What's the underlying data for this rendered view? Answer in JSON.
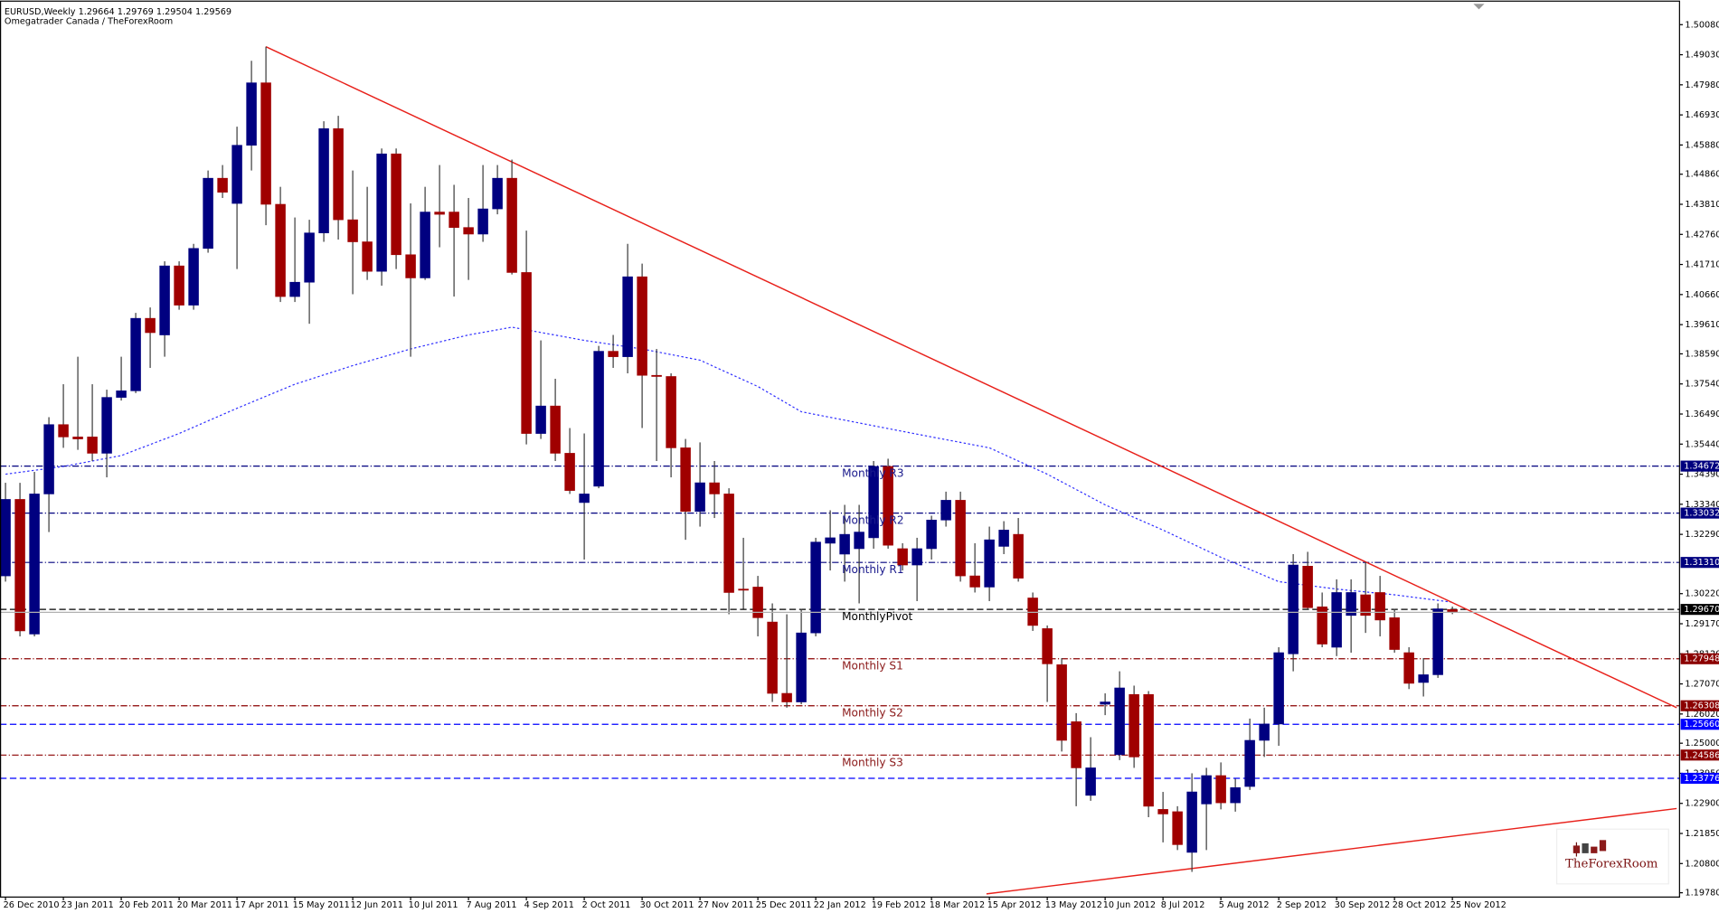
{
  "chart_data": {
    "type": "candlestick",
    "symbol_info": "EURUSD,Weekly  1.29664 1.29769 1.29504 1.29569",
    "broker": "Omegatrader Canada / TheForexRoom",
    "logo": "TheForexRoom",
    "up_color": "#000080",
    "down_color": "#a00000",
    "wick_color": "#3a3a3a",
    "grid": false,
    "categories": [
      "26 Dec 2010",
      null,
      null,
      null,
      "23 Jan 2011",
      null,
      null,
      null,
      "20 Feb 2011",
      null,
      null,
      null,
      "20 Mar 2011",
      null,
      null,
      null,
      "17 Apr 2011",
      null,
      null,
      null,
      "15 May 2011",
      null,
      null,
      null,
      "12 Jun 2011",
      null,
      null,
      null,
      "10 Jul 2011",
      null,
      null,
      null,
      "7 Aug 2011",
      null,
      null,
      null,
      "4 Sep 2011",
      null,
      null,
      null,
      "2 Oct 2011",
      null,
      null,
      null,
      "30 Oct 2011",
      null,
      null,
      null,
      "27 Nov 2011",
      null,
      null,
      null,
      "25 Dec 2011",
      null,
      null,
      null,
      "22 Jan 2012",
      null,
      null,
      null,
      "19 Feb 2012",
      null,
      null,
      null,
      "18 Mar 2012",
      null,
      null,
      null,
      "15 Apr 2012",
      null,
      null,
      null,
      "13 May 2012",
      null,
      null,
      null,
      "10 Jun 2012",
      null,
      null,
      null,
      "8 Jul 2012",
      null,
      null,
      null,
      "5 Aug 2012",
      null,
      null,
      null,
      "2 Sep 2012",
      null,
      null,
      null,
      "30 Sep 2012",
      null,
      null,
      null,
      "28 Oct 2012",
      null,
      null,
      null,
      "25 Nov 2012"
    ],
    "open": [
      1.3084,
      1.3351,
      1.2881,
      1.337,
      1.3612,
      1.3569,
      1.3569,
      1.3512,
      1.3707,
      1.373,
      1.3983,
      1.3925,
      1.4166,
      1.4029,
      1.4227,
      1.4472,
      1.4384,
      1.4587,
      1.4805,
      1.4381,
      1.4059,
      1.4109,
      1.4281,
      1.4645,
      1.4327,
      1.425,
      1.4147,
      1.4557,
      1.4205,
      1.4124,
      1.4354,
      1.4354,
      1.43,
      1.4277,
      1.4365,
      1.4472,
      1.4143,
      1.3581,
      1.3677,
      1.3512,
      1.334,
      1.3397,
      1.3868,
      1.3849,
      1.4128,
      1.3784,
      1.378,
      1.3531,
      1.3309,
      1.3409,
      1.337,
      1.3038,
      1.3045,
      1.2923,
      1.2674,
      1.2644,
      1.2885,
      1.3198,
      1.316,
      1.3179,
      1.3217,
      1.3466,
      1.3179,
      1.3122,
      1.3179,
      1.3279,
      1.3348,
      1.3084,
      1.3045,
      1.3187,
      1.3229,
      1.3007,
      1.29,
      1.2774,
      1.2575,
      1.2318,
      1.2636,
      1.246,
      1.267,
      1.267,
      1.2269,
      1.2261,
      1.2119,
      1.2288,
      1.2387,
      1.2292,
      1.2349,
      1.251,
      1.2567,
      1.2812,
      1.3118,
      1.2976,
      1.2835,
      1.2946,
      1.3018,
      1.3026,
      1.2938,
      1.2816,
      1.2712,
      1.2739,
      1.29664
    ],
    "high": [
      1.3409,
      1.3409,
      1.3447,
      1.3638,
      1.3753,
      1.3849,
      1.3753,
      1.3734,
      1.3849,
      1.4002,
      1.4021,
      1.4182,
      1.4182,
      1.4243,
      1.4499,
      1.4518,
      1.4652,
      1.4882,
      1.4931,
      1.4442,
      1.4335,
      1.4327,
      1.4671,
      1.469,
      1.4499,
      1.4442,
      1.4576,
      1.4576,
      1.4384,
      1.4442,
      1.4518,
      1.4449,
      1.4403,
      1.4518,
      1.4518,
      1.4537,
      1.4289,
      1.3906,
      1.3772,
      1.36,
      1.3581,
      1.3887,
      1.3925,
      1.4243,
      1.4174,
      1.3876,
      1.3791,
      1.3562,
      1.355,
      1.3485,
      1.339,
      1.3217,
      1.3084,
      1.2988,
      1.295,
      1.2969,
      1.3217,
      1.3313,
      1.3332,
      1.3332,
      1.3485,
      1.3493,
      1.3198,
      1.3217,
      1.3294,
      1.3378,
      1.3378,
      1.3198,
      1.3256,
      1.3275,
      1.3286,
      1.3026,
      1.2911,
      1.2797,
      1.2605,
      1.2521,
      1.2674,
      1.2751,
      1.2701,
      1.2682,
      1.233,
      1.228,
      1.2395,
      1.2414,
      1.2433,
      1.2376,
      1.2586,
      1.2624,
      1.2835,
      1.316,
      1.3168,
      1.3026,
      1.3072,
      1.3072,
      1.3133,
      1.3084,
      1.2969,
      1.2835,
      1.2797,
      1.2988,
      1.29769
    ],
    "low": [
      1.3064,
      1.2873,
      1.2873,
      1.3237,
      1.3531,
      1.3524,
      1.3485,
      1.3428,
      1.3696,
      1.3722,
      1.381,
      1.3849,
      1.4013,
      1.4013,
      1.4212,
      1.4403,
      1.4155,
      1.4499,
      1.4308,
      1.404,
      1.404,
      1.3964,
      1.425,
      1.4258,
      1.4067,
      1.4117,
      1.4097,
      1.4155,
      1.3849,
      1.4117,
      1.4231,
      1.4059,
      1.4117,
      1.425,
      1.4346,
      1.4136,
      1.3543,
      1.3562,
      1.3485,
      1.337,
      1.3141,
      1.339,
      1.381,
      1.3791,
      1.36,
      1.3485,
      1.3428,
      1.321,
      1.3256,
      1.3286,
      1.295,
      1.2969,
      1.2873,
      1.2644,
      1.2624,
      1.2636,
      1.2873,
      1.3103,
      1.3064,
      1.2988,
      1.3179,
      1.3179,
      1.3103,
      1.2996,
      1.3141,
      1.3256,
      1.3064,
      1.3026,
      1.2996,
      1.316,
      1.3064,
      1.2892,
      1.2644,
      1.2471,
      1.228,
      1.2299,
      1.2598,
      1.2441,
      1.2414,
      1.2242,
      1.2154,
      1.2127,
      1.2051,
      1.2127,
      1.2269,
      1.2261,
      1.2337,
      1.2452,
      1.2491,
      1.2751,
      1.2965,
      1.2835,
      1.2804,
      1.2816,
      1.2885,
      1.2873,
      1.2816,
      1.2689,
      1.2663,
      1.2728,
      1.29504
    ],
    "close": [
      1.3351,
      1.2892,
      1.337,
      1.3612,
      1.3569,
      1.3562,
      1.3512,
      1.3707,
      1.373,
      1.3983,
      1.3933,
      1.4166,
      1.4029,
      1.4227,
      1.4472,
      1.4423,
      1.4587,
      1.4805,
      1.4381,
      1.4059,
      1.4109,
      1.4281,
      1.4645,
      1.4327,
      1.425,
      1.4147,
      1.4557,
      1.4205,
      1.4124,
      1.4354,
      1.4346,
      1.43,
      1.4277,
      1.4365,
      1.4472,
      1.4143,
      1.3581,
      1.3677,
      1.3512,
      1.3382,
      1.337,
      1.3868,
      1.3849,
      1.4128,
      1.3784,
      1.378,
      1.3531,
      1.3309,
      1.3409,
      1.337,
      1.3026,
      1.3034,
      1.2938,
      1.2674,
      1.2644,
      1.2885,
      1.3202,
      1.3217,
      1.3229,
      1.3237,
      1.3466,
      1.3191,
      1.3122,
      1.3179,
      1.3279,
      1.3348,
      1.3084,
      1.3045,
      1.321,
      1.3244,
      1.3076,
      1.2911,
      1.2777,
      1.251,
      1.2414,
      1.2414,
      1.2644,
      1.2693,
      1.2452,
      1.228,
      1.2253,
      1.2146,
      1.233,
      1.2387,
      1.2292,
      1.2345,
      1.251,
      1.2567,
      1.2816,
      1.3122,
      1.2973,
      1.2846,
      1.3026,
      1.3026,
      1.2946,
      1.293,
      1.2827,
      1.2709,
      1.2739,
      1.2969,
      1.29569
    ],
    "xlim": [
      -0.38,
      115.7
    ],
    "ylim": [
      1.1963,
      1.5092
    ],
    "yticks": [
      {
        "value": 1.5008,
        "label": "1.50080"
      },
      {
        "value": 1.4903,
        "label": "1.49030"
      },
      {
        "value": 1.4798,
        "label": "1.47980"
      },
      {
        "value": 1.4693,
        "label": "1.46930"
      },
      {
        "value": 1.4588,
        "label": "1.45880"
      },
      {
        "value": 1.4486,
        "label": "1.44860"
      },
      {
        "value": 1.4381,
        "label": "1.43810"
      },
      {
        "value": 1.4276,
        "label": "1.42760"
      },
      {
        "value": 1.4171,
        "label": "1.41710"
      },
      {
        "value": 1.4066,
        "label": "1.40660"
      },
      {
        "value": 1.3961,
        "label": "1.39610"
      },
      {
        "value": 1.3859,
        "label": "1.38590"
      },
      {
        "value": 1.3754,
        "label": "1.37540"
      },
      {
        "value": 1.3649,
        "label": "1.36490"
      },
      {
        "value": 1.3544,
        "label": "1.35440"
      },
      {
        "value": 1.3439,
        "label": "1.34390"
      },
      {
        "value": 1.3334,
        "label": "1.33340"
      },
      {
        "value": 1.3229,
        "label": "1.32290"
      },
      {
        "value": 1.3022,
        "label": "1.30220"
      },
      {
        "value": 1.2917,
        "label": "1.29170"
      },
      {
        "value": 1.2812,
        "label": "1.28120"
      },
      {
        "value": 1.2707,
        "label": "1.27070"
      },
      {
        "value": 1.2602,
        "label": "1.26020"
      },
      {
        "value": 1.25,
        "label": "1.25000"
      },
      {
        "value": 1.2395,
        "label": "1.23950"
      },
      {
        "value": 1.229,
        "label": "1.22900"
      },
      {
        "value": 1.2185,
        "label": "1.21850"
      },
      {
        "value": 1.208,
        "label": "1.20800"
      },
      {
        "value": 1.1978,
        "label": "1.19780"
      }
    ],
    "levels": [
      {
        "name": "Monthly R3",
        "value": 1.34672,
        "label": "1.34672",
        "color": "#00007f",
        "text_color": "#1a1a8c",
        "style": "dashdot"
      },
      {
        "name": "Monthly R2",
        "value": 1.33032,
        "label": "1.33032",
        "color": "#00007f",
        "text_color": "#1a1a8c",
        "style": "dashdot"
      },
      {
        "name": "Monthly R1",
        "value": 1.3131,
        "label": "1.31310",
        "color": "#00007f",
        "text_color": "#1a1a8c",
        "style": "dashdot"
      },
      {
        "name": "MonthlyPivot",
        "value": 1.2967,
        "label": "1.29670",
        "color": "#000000",
        "text_color": "#000000",
        "style": "dashed"
      },
      {
        "name": "Monthly S1",
        "value": 1.27948,
        "label": "1.27948",
        "color": "#8b0000",
        "text_color": "#8b1a1a",
        "style": "dashdot"
      },
      {
        "name": "Monthly S2",
        "value": 1.26308,
        "label": "1.26308",
        "color": "#8b0000",
        "text_color": "#8b1a1a",
        "style": "dashdot"
      },
      {
        "name": "Monthly S3",
        "value": 1.24586,
        "label": "1.24586",
        "color": "#8b0000",
        "text_color": "#8b1a1a",
        "style": "dashdot"
      },
      {
        "value": 1.2566,
        "label": "1.25660",
        "color": "#0000ff",
        "style": "dashed"
      },
      {
        "value": 1.23776,
        "label": "1.23776",
        "color": "#0000ff",
        "style": "dashed"
      }
    ],
    "trendlines": [
      {
        "color": "#e8201a",
        "points": [
          [
            18,
            1.4931
          ],
          [
            115.5,
            1.2624
          ]
        ]
      },
      {
        "color": "#e8201a",
        "points": [
          [
            67.8,
            1.1974
          ],
          [
            115.5,
            1.2272
          ]
        ]
      }
    ],
    "moving_average": {
      "color": "#3030ff",
      "x": [
        0,
        4,
        8,
        12,
        16,
        20,
        24,
        28,
        32,
        35,
        40,
        44,
        48,
        52,
        55,
        60,
        64,
        68,
        72,
        76,
        80,
        84,
        88,
        92,
        96,
        100
      ],
      "values": [
        1.3439,
        1.3466,
        1.3504,
        1.3581,
        1.3669,
        1.3753,
        1.3818,
        1.3876,
        1.3925,
        1.3952,
        1.3906,
        1.3876,
        1.3837,
        1.3745,
        1.3657,
        1.3608,
        1.3569,
        1.3531,
        1.3439,
        1.3332,
        1.3244,
        1.3149,
        1.3064,
        1.3038,
        1.3018,
        1.2992
      ]
    }
  }
}
